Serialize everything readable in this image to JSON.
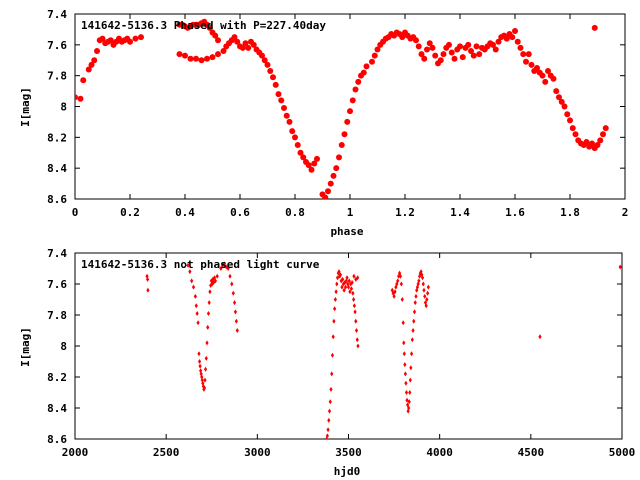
{
  "colors": {
    "marker": "#ff0000",
    "axis": "#000000",
    "background": "#ffffff"
  },
  "chart_data": [
    {
      "type": "scatter",
      "title": "141642-5136.3 Phased with P=227.40day",
      "xlabel": "phase",
      "ylabel": "I[mag]",
      "xlim": [
        0,
        2
      ],
      "ylim": [
        7.4,
        8.6
      ],
      "y_inverted": true,
      "xticks": [
        0,
        0.2,
        0.4,
        0.6,
        0.8,
        1,
        1.2,
        1.4,
        1.6,
        1.8,
        2
      ],
      "xtick_labels": [
        "0",
        "0.2",
        "0.4",
        "0.6",
        "0.8",
        "1",
        "1.2",
        "1.4",
        "1.6",
        "1.8",
        "2"
      ],
      "yticks": [
        7.4,
        7.6,
        7.8,
        8,
        8.2,
        8.4,
        8.6
      ],
      "ytick_labels": [
        "7.4",
        "7.6",
        "7.8",
        "8",
        "8.2",
        "8.4",
        "8.6"
      ],
      "marker": "filled-circle",
      "points": [
        [
          0.0,
          7.94
        ],
        [
          0.02,
          7.95
        ],
        [
          0.03,
          7.83
        ],
        [
          0.05,
          7.76
        ],
        [
          0.06,
          7.73
        ],
        [
          0.07,
          7.7
        ],
        [
          0.08,
          7.64
        ],
        [
          0.09,
          7.57
        ],
        [
          0.1,
          7.56
        ],
        [
          0.11,
          7.59
        ],
        [
          0.12,
          7.58
        ],
        [
          0.13,
          7.57
        ],
        [
          0.14,
          7.6
        ],
        [
          0.15,
          7.58
        ],
        [
          0.16,
          7.56
        ],
        [
          0.17,
          7.58
        ],
        [
          0.18,
          7.57
        ],
        [
          0.19,
          7.56
        ],
        [
          0.2,
          7.58
        ],
        [
          0.22,
          7.56
        ],
        [
          0.24,
          7.55
        ],
        [
          0.38,
          7.47
        ],
        [
          0.39,
          7.47
        ],
        [
          0.4,
          7.48
        ],
        [
          0.41,
          7.49
        ],
        [
          0.42,
          7.48
        ],
        [
          0.43,
          7.47
        ],
        [
          0.44,
          7.47
        ],
        [
          0.45,
          7.47
        ],
        [
          0.46,
          7.46
        ],
        [
          0.47,
          7.45
        ],
        [
          0.48,
          7.47
        ],
        [
          0.49,
          7.49
        ],
        [
          0.5,
          7.52
        ],
        [
          0.51,
          7.54
        ],
        [
          0.52,
          7.57
        ],
        [
          0.38,
          7.66
        ],
        [
          0.4,
          7.67
        ],
        [
          0.42,
          7.69
        ],
        [
          0.44,
          7.69
        ],
        [
          0.46,
          7.7
        ],
        [
          0.48,
          7.69
        ],
        [
          0.5,
          7.68
        ],
        [
          0.52,
          7.66
        ],
        [
          0.54,
          7.64
        ],
        [
          0.55,
          7.61
        ],
        [
          0.56,
          7.59
        ],
        [
          0.57,
          7.57
        ],
        [
          0.58,
          7.55
        ],
        [
          0.59,
          7.58
        ],
        [
          0.6,
          7.61
        ],
        [
          0.61,
          7.62
        ],
        [
          0.62,
          7.59
        ],
        [
          0.63,
          7.62
        ],
        [
          0.64,
          7.58
        ],
        [
          0.65,
          7.6
        ],
        [
          0.66,
          7.63
        ],
        [
          0.67,
          7.65
        ],
        [
          0.68,
          7.67
        ],
        [
          0.69,
          7.7
        ],
        [
          0.7,
          7.73
        ],
        [
          0.71,
          7.77
        ],
        [
          0.72,
          7.81
        ],
        [
          0.73,
          7.86
        ],
        [
          0.74,
          7.92
        ],
        [
          0.75,
          7.96
        ],
        [
          0.76,
          8.01
        ],
        [
          0.77,
          8.06
        ],
        [
          0.78,
          8.1
        ],
        [
          0.79,
          8.16
        ],
        [
          0.8,
          8.2
        ],
        [
          0.81,
          8.25
        ],
        [
          0.82,
          8.3
        ],
        [
          0.83,
          8.33
        ],
        [
          0.84,
          8.36
        ],
        [
          0.85,
          8.38
        ],
        [
          0.86,
          8.41
        ],
        [
          0.87,
          8.37
        ],
        [
          0.88,
          8.34
        ],
        [
          0.9,
          8.57
        ],
        [
          0.91,
          8.59
        ],
        [
          0.92,
          8.55
        ],
        [
          0.93,
          8.5
        ],
        [
          0.94,
          8.45
        ],
        [
          0.95,
          8.4
        ],
        [
          0.96,
          8.33
        ],
        [
          0.97,
          8.25
        ],
        [
          0.98,
          8.18
        ],
        [
          0.99,
          8.1
        ],
        [
          1.0,
          8.03
        ],
        [
          1.01,
          7.96
        ],
        [
          1.02,
          7.89
        ],
        [
          1.03,
          7.84
        ],
        [
          1.04,
          7.8
        ],
        [
          1.05,
          7.78
        ],
        [
          1.06,
          7.74
        ],
        [
          1.08,
          7.71
        ],
        [
          1.09,
          7.67
        ],
        [
          1.1,
          7.63
        ],
        [
          1.11,
          7.6
        ],
        [
          1.12,
          7.58
        ],
        [
          1.13,
          7.56
        ],
        [
          1.14,
          7.55
        ],
        [
          1.15,
          7.53
        ],
        [
          1.16,
          7.54
        ],
        [
          1.17,
          7.52
        ],
        [
          1.18,
          7.53
        ],
        [
          1.19,
          7.55
        ],
        [
          1.2,
          7.52
        ],
        [
          1.21,
          7.54
        ],
        [
          1.22,
          7.56
        ],
        [
          1.23,
          7.55
        ],
        [
          1.24,
          7.57
        ],
        [
          1.25,
          7.61
        ],
        [
          1.26,
          7.66
        ],
        [
          1.27,
          7.69
        ],
        [
          1.28,
          7.63
        ],
        [
          1.29,
          7.59
        ],
        [
          1.3,
          7.62
        ],
        [
          1.31,
          7.67
        ],
        [
          1.32,
          7.72
        ],
        [
          1.33,
          7.7
        ],
        [
          1.34,
          7.66
        ],
        [
          1.35,
          7.62
        ],
        [
          1.36,
          7.6
        ],
        [
          1.37,
          7.65
        ],
        [
          1.38,
          7.69
        ],
        [
          1.39,
          7.63
        ],
        [
          1.4,
          7.61
        ],
        [
          1.41,
          7.68
        ],
        [
          1.42,
          7.62
        ],
        [
          1.43,
          7.6
        ],
        [
          1.44,
          7.64
        ],
        [
          1.45,
          7.67
        ],
        [
          1.46,
          7.61
        ],
        [
          1.47,
          7.66
        ],
        [
          1.48,
          7.62
        ],
        [
          1.49,
          7.63
        ],
        [
          1.5,
          7.61
        ],
        [
          1.51,
          7.59
        ],
        [
          1.52,
          7.6
        ],
        [
          1.53,
          7.63
        ],
        [
          1.54,
          7.58
        ],
        [
          1.55,
          7.55
        ],
        [
          1.56,
          7.54
        ],
        [
          1.57,
          7.56
        ],
        [
          1.58,
          7.53
        ],
        [
          1.59,
          7.55
        ],
        [
          1.6,
          7.51
        ],
        [
          1.61,
          7.58
        ],
        [
          1.62,
          7.62
        ],
        [
          1.63,
          7.66
        ],
        [
          1.64,
          7.71
        ],
        [
          1.65,
          7.66
        ],
        [
          1.66,
          7.73
        ],
        [
          1.67,
          7.77
        ],
        [
          1.68,
          7.75
        ],
        [
          1.69,
          7.78
        ],
        [
          1.7,
          7.8
        ],
        [
          1.71,
          7.84
        ],
        [
          1.72,
          7.77
        ],
        [
          1.73,
          7.8
        ],
        [
          1.74,
          7.82
        ],
        [
          1.75,
          7.9
        ],
        [
          1.76,
          7.94
        ],
        [
          1.77,
          7.97
        ],
        [
          1.78,
          8.0
        ],
        [
          1.79,
          8.05
        ],
        [
          1.8,
          8.09
        ],
        [
          1.81,
          8.14
        ],
        [
          1.82,
          8.18
        ],
        [
          1.83,
          8.22
        ],
        [
          1.84,
          8.24
        ],
        [
          1.85,
          8.25
        ],
        [
          1.86,
          8.23
        ],
        [
          1.87,
          8.26
        ],
        [
          1.88,
          8.24
        ],
        [
          1.89,
          8.27
        ],
        [
          1.9,
          8.25
        ],
        [
          1.91,
          8.22
        ],
        [
          1.92,
          8.18
        ],
        [
          1.93,
          8.14
        ],
        [
          1.89,
          7.49
        ]
      ]
    },
    {
      "type": "scatter",
      "title": "141642-5136.3 not phased light curve",
      "xlabel": "hjd0",
      "ylabel": "I[mag]",
      "xlim": [
        2000,
        5000
      ],
      "ylim": [
        7.4,
        8.6
      ],
      "y_inverted": true,
      "xticks": [
        2000,
        2500,
        3000,
        3500,
        4000,
        4500,
        5000
      ],
      "xtick_labels": [
        "2000",
        "2500",
        "3000",
        "3500",
        "4000",
        "4500",
        "5000"
      ],
      "yticks": [
        7.4,
        7.6,
        7.8,
        8,
        8.2,
        8.4,
        8.6
      ],
      "ytick_labels": [
        "7.4",
        "7.6",
        "7.8",
        "8",
        "8.2",
        "8.4",
        "8.6"
      ],
      "marker": "small-diamond",
      "points": [
        [
          2395,
          7.55
        ],
        [
          2398,
          7.57
        ],
        [
          2400,
          7.64
        ],
        [
          2620,
          7.48
        ],
        [
          2630,
          7.52
        ],
        [
          2640,
          7.58
        ],
        [
          2650,
          7.62
        ],
        [
          2660,
          7.68
        ],
        [
          2665,
          7.74
        ],
        [
          2670,
          7.79
        ],
        [
          2675,
          7.85
        ],
        [
          2680,
          8.05
        ],
        [
          2683,
          8.1
        ],
        [
          2686,
          8.13
        ],
        [
          2689,
          8.16
        ],
        [
          2692,
          8.18
        ],
        [
          2695,
          8.2
        ],
        [
          2698,
          8.22
        ],
        [
          2701,
          8.24
        ],
        [
          2704,
          8.26
        ],
        [
          2707,
          8.28
        ],
        [
          2710,
          8.27
        ],
        [
          2713,
          8.22
        ],
        [
          2716,
          8.15
        ],
        [
          2720,
          8.08
        ],
        [
          2724,
          7.98
        ],
        [
          2728,
          7.88
        ],
        [
          2732,
          7.79
        ],
        [
          2736,
          7.72
        ],
        [
          2740,
          7.65
        ],
        [
          2744,
          7.61
        ],
        [
          2748,
          7.58
        ],
        [
          2752,
          7.6
        ],
        [
          2756,
          7.57
        ],
        [
          2760,
          7.59
        ],
        [
          2765,
          7.56
        ],
        [
          2770,
          7.58
        ],
        [
          2780,
          7.55
        ],
        [
          2800,
          7.5
        ],
        [
          2810,
          7.48
        ],
        [
          2820,
          7.47
        ],
        [
          2830,
          7.49
        ],
        [
          2840,
          7.5
        ],
        [
          2850,
          7.55
        ],
        [
          2860,
          7.6
        ],
        [
          2868,
          7.66
        ],
        [
          2875,
          7.72
        ],
        [
          2880,
          7.78
        ],
        [
          2885,
          7.84
        ],
        [
          2890,
          7.9
        ],
        [
          3380,
          8.6
        ],
        [
          3384,
          8.58
        ],
        [
          3388,
          8.54
        ],
        [
          3392,
          8.48
        ],
        [
          3396,
          8.42
        ],
        [
          3400,
          8.36
        ],
        [
          3404,
          8.28
        ],
        [
          3408,
          8.18
        ],
        [
          3412,
          8.06
        ],
        [
          3416,
          7.94
        ],
        [
          3420,
          7.84
        ],
        [
          3424,
          7.76
        ],
        [
          3428,
          7.7
        ],
        [
          3432,
          7.65
        ],
        [
          3436,
          7.6
        ],
        [
          3440,
          7.56
        ],
        [
          3444,
          7.53
        ],
        [
          3448,
          7.52
        ],
        [
          3452,
          7.55
        ],
        [
          3456,
          7.54
        ],
        [
          3460,
          7.58
        ],
        [
          3464,
          7.62
        ],
        [
          3468,
          7.57
        ],
        [
          3472,
          7.6
        ],
        [
          3476,
          7.64
        ],
        [
          3480,
          7.59
        ],
        [
          3484,
          7.62
        ],
        [
          3488,
          7.58
        ],
        [
          3492,
          7.56
        ],
        [
          3496,
          7.6
        ],
        [
          3500,
          7.62
        ],
        [
          3504,
          7.58
        ],
        [
          3508,
          7.65
        ],
        [
          3512,
          7.6
        ],
        [
          3516,
          7.63
        ],
        [
          3520,
          7.59
        ],
        [
          3524,
          7.66
        ],
        [
          3528,
          7.7
        ],
        [
          3532,
          7.74
        ],
        [
          3536,
          7.78
        ],
        [
          3540,
          7.84
        ],
        [
          3544,
          7.9
        ],
        [
          3548,
          7.96
        ],
        [
          3552,
          8.0
        ],
        [
          3530,
          7.55
        ],
        [
          3540,
          7.57
        ],
        [
          3550,
          7.56
        ],
        [
          3740,
          7.64
        ],
        [
          3745,
          7.66
        ],
        [
          3750,
          7.68
        ],
        [
          3755,
          7.65
        ],
        [
          3760,
          7.62
        ],
        [
          3765,
          7.6
        ],
        [
          3770,
          7.58
        ],
        [
          3775,
          7.55
        ],
        [
          3780,
          7.53
        ],
        [
          3785,
          7.55
        ],
        [
          3790,
          7.6
        ],
        [
          3795,
          7.7
        ],
        [
          3800,
          7.85
        ],
        [
          3803,
          7.98
        ],
        [
          3806,
          8.05
        ],
        [
          3809,
          8.12
        ],
        [
          3812,
          8.18
        ],
        [
          3815,
          8.24
        ],
        [
          3818,
          8.3
        ],
        [
          3821,
          8.35
        ],
        [
          3824,
          8.38
        ],
        [
          3827,
          8.42
        ],
        [
          3830,
          8.4
        ],
        [
          3833,
          8.36
        ],
        [
          3836,
          8.3
        ],
        [
          3839,
          8.22
        ],
        [
          3842,
          8.14
        ],
        [
          3846,
          8.05
        ],
        [
          3850,
          7.96
        ],
        [
          3854,
          7.9
        ],
        [
          3858,
          7.84
        ],
        [
          3862,
          7.78
        ],
        [
          3866,
          7.72
        ],
        [
          3870,
          7.68
        ],
        [
          3874,
          7.64
        ],
        [
          3878,
          7.62
        ],
        [
          3882,
          7.6
        ],
        [
          3886,
          7.58
        ],
        [
          3890,
          7.55
        ],
        [
          3894,
          7.53
        ],
        [
          3898,
          7.52
        ],
        [
          3902,
          7.54
        ],
        [
          3906,
          7.56
        ],
        [
          3910,
          7.6
        ],
        [
          3914,
          7.64
        ],
        [
          3918,
          7.68
        ],
        [
          3922,
          7.72
        ],
        [
          3926,
          7.74
        ],
        [
          3930,
          7.7
        ],
        [
          3934,
          7.66
        ],
        [
          3938,
          7.62
        ],
        [
          4550,
          7.94
        ],
        [
          4990,
          7.49
        ]
      ]
    }
  ]
}
